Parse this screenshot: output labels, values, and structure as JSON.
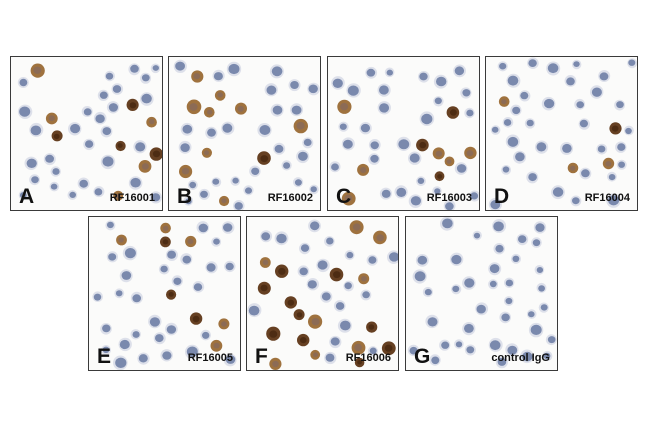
{
  "panels": [
    {
      "letter": "A",
      "code": "RF16001",
      "stain": "moderate"
    },
    {
      "letter": "B",
      "code": "RF16002",
      "stain": "moderate"
    },
    {
      "letter": "C",
      "code": "RF16003",
      "stain": "moderate"
    },
    {
      "letter": "D",
      "code": "RF16004",
      "stain": "light"
    },
    {
      "letter": "E",
      "code": "RF16005",
      "stain": "moderate"
    },
    {
      "letter": "F",
      "code": "RF16006",
      "stain": "strong"
    },
    {
      "letter": "G",
      "code": "control IgG",
      "stain": "none"
    }
  ],
  "colors": {
    "nucleus_blue": "#6f7fa6",
    "dab_brown": "#9a6a34",
    "dab_dark": "#5e3616",
    "background": "#fbfbfa"
  }
}
